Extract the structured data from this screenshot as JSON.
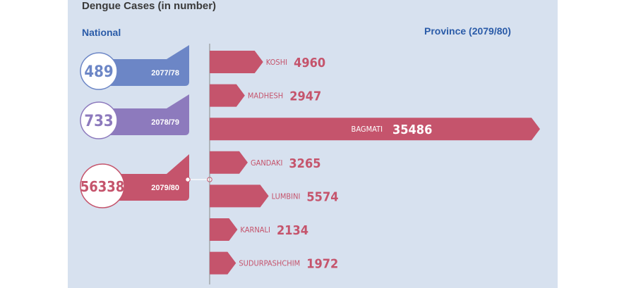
{
  "title": "Dengue Cases (in number)",
  "national_heading": "National",
  "province_heading": "Province (2079/80)",
  "colors": {
    "background": "#d7e1ef",
    "bar": "#c5546c",
    "national_2077": "#6c86c6",
    "national_2078": "#8d7abd",
    "national_2079": "#c5546c",
    "heading": "#2a5ba8"
  },
  "chart_data": [
    {
      "type": "bar",
      "orientation": "horizontal",
      "title": "National",
      "categories": [
        "2077/78",
        "2078/79",
        "2079/80"
      ],
      "values": [
        489,
        733,
        56338
      ]
    },
    {
      "type": "bar",
      "orientation": "horizontal",
      "title": "Province (2079/80)",
      "categories": [
        "KOSHI",
        "MADHESH",
        "BAGMATI",
        "GANDAKI",
        "LUMBINI",
        "KARNALI",
        "SUDURPASHCHIM"
      ],
      "values": [
        4960,
        2947,
        35486,
        3265,
        5574,
        2134,
        1972
      ]
    }
  ]
}
